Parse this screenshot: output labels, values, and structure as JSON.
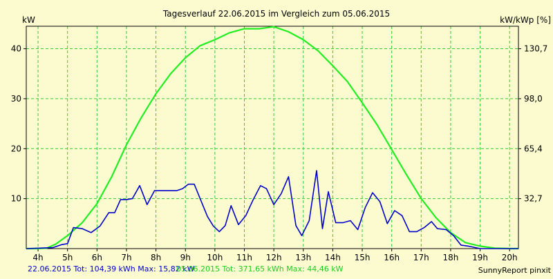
{
  "chart_data": {
    "type": "line",
    "title": "Tagesverlauf 22.06.2015 im Vergleich zum 05.06.2015",
    "left_axis_label": "kW",
    "right_axis_label": "kW/kWp [%]",
    "credit": "SunnyReport pinxit",
    "grid": true,
    "xlim": [
      3.6,
      20.3
    ],
    "ylim": [
      0,
      44.5
    ],
    "x_ticks": [
      {
        "value": 4,
        "label": "4h"
      },
      {
        "value": 5,
        "label": "5h"
      },
      {
        "value": 6,
        "label": "6h"
      },
      {
        "value": 7,
        "label": "7h"
      },
      {
        "value": 8,
        "label": "8h"
      },
      {
        "value": 9,
        "label": "9h"
      },
      {
        "value": 10,
        "label": "10h"
      },
      {
        "value": 11,
        "label": "11h"
      },
      {
        "value": 12,
        "label": "12h"
      },
      {
        "value": 13,
        "label": "13h"
      },
      {
        "value": 14,
        "label": "14h"
      },
      {
        "value": 15,
        "label": "15h"
      },
      {
        "value": 16,
        "label": "16h"
      },
      {
        "value": 17,
        "label": "17h"
      },
      {
        "value": 18,
        "label": "18h"
      },
      {
        "value": 19,
        "label": "19h"
      },
      {
        "value": 20,
        "label": "20h"
      }
    ],
    "y_ticks_left": [
      10,
      20,
      30,
      40
    ],
    "y_ticks_right": [
      {
        "value": 10,
        "label": "32,7"
      },
      {
        "value": 20,
        "label": "65,4"
      },
      {
        "value": 30,
        "label": "98,0"
      },
      {
        "value": 40,
        "label": "130,7"
      }
    ],
    "series": [
      {
        "name": "22.06.2015",
        "summary": "22.06.2015 Tot: 104,39 kWh Max: 15,82 kW",
        "color": "#0000cc",
        "points": [
          [
            3.6,
            0
          ],
          [
            4.5,
            0.2
          ],
          [
            4.8,
            0.8
          ],
          [
            5.0,
            1.0
          ],
          [
            5.2,
            4.2
          ],
          [
            5.5,
            4.0
          ],
          [
            5.8,
            3.2
          ],
          [
            6.1,
            4.5
          ],
          [
            6.4,
            7.2
          ],
          [
            6.6,
            7.2
          ],
          [
            6.8,
            9.8
          ],
          [
            7.0,
            9.8
          ],
          [
            7.2,
            10.0
          ],
          [
            7.45,
            12.6
          ],
          [
            7.7,
            8.8
          ],
          [
            7.95,
            11.6
          ],
          [
            8.3,
            11.6
          ],
          [
            8.7,
            11.6
          ],
          [
            8.9,
            12.0
          ],
          [
            9.1,
            12.9
          ],
          [
            9.3,
            12.9
          ],
          [
            9.5,
            10.0
          ],
          [
            9.75,
            6.4
          ],
          [
            9.95,
            4.5
          ],
          [
            10.15,
            3.4
          ],
          [
            10.35,
            4.6
          ],
          [
            10.55,
            8.6
          ],
          [
            10.8,
            4.8
          ],
          [
            11.05,
            6.6
          ],
          [
            11.3,
            9.8
          ],
          [
            11.55,
            12.6
          ],
          [
            11.75,
            12.0
          ],
          [
            12.0,
            8.8
          ],
          [
            12.25,
            11.0
          ],
          [
            12.5,
            14.4
          ],
          [
            12.75,
            4.6
          ],
          [
            12.95,
            2.6
          ],
          [
            13.2,
            5.6
          ],
          [
            13.45,
            15.6
          ],
          [
            13.65,
            4.0
          ],
          [
            13.85,
            11.4
          ],
          [
            14.1,
            5.2
          ],
          [
            14.35,
            5.2
          ],
          [
            14.6,
            5.6
          ],
          [
            14.85,
            3.8
          ],
          [
            15.1,
            8.2
          ],
          [
            15.35,
            11.2
          ],
          [
            15.6,
            9.4
          ],
          [
            15.85,
            5.0
          ],
          [
            16.1,
            7.6
          ],
          [
            16.35,
            6.6
          ],
          [
            16.6,
            3.4
          ],
          [
            16.85,
            3.4
          ],
          [
            17.1,
            4.2
          ],
          [
            17.35,
            5.4
          ],
          [
            17.55,
            4.0
          ],
          [
            17.85,
            3.8
          ],
          [
            18.1,
            2.6
          ],
          [
            18.35,
            0.7
          ],
          [
            18.6,
            0.5
          ],
          [
            19.0,
            0.0
          ],
          [
            20.3,
            0.0
          ]
        ]
      },
      {
        "name": "05.06.2015",
        "summary": "05.06.2015 Tot: 371,65 kWh Max: 44,46 kW",
        "color": "#22ee22",
        "points": [
          [
            3.6,
            0
          ],
          [
            4.0,
            0.0
          ],
          [
            4.3,
            0.1
          ],
          [
            4.6,
            0.9
          ],
          [
            5.0,
            2.6
          ],
          [
            5.5,
            5.2
          ],
          [
            6.0,
            9.0
          ],
          [
            6.5,
            14.4
          ],
          [
            7.0,
            20.8
          ],
          [
            7.5,
            26.2
          ],
          [
            8.0,
            31.0
          ],
          [
            8.5,
            35.0
          ],
          [
            9.0,
            38.2
          ],
          [
            9.5,
            40.6
          ],
          [
            10.0,
            41.8
          ],
          [
            10.5,
            43.2
          ],
          [
            11.0,
            44.0
          ],
          [
            11.5,
            44.0
          ],
          [
            12.0,
            44.4
          ],
          [
            12.5,
            43.4
          ],
          [
            13.0,
            41.8
          ],
          [
            13.5,
            39.6
          ],
          [
            14.0,
            36.6
          ],
          [
            14.5,
            33.4
          ],
          [
            15.0,
            29.2
          ],
          [
            15.5,
            24.8
          ],
          [
            16.0,
            19.8
          ],
          [
            16.5,
            14.8
          ],
          [
            17.0,
            10.0
          ],
          [
            17.5,
            6.2
          ],
          [
            18.0,
            3.2
          ],
          [
            18.5,
            1.2
          ],
          [
            19.0,
            0.5
          ],
          [
            19.5,
            0.1
          ],
          [
            20.0,
            0.0
          ],
          [
            20.3,
            0.0
          ]
        ]
      }
    ]
  }
}
